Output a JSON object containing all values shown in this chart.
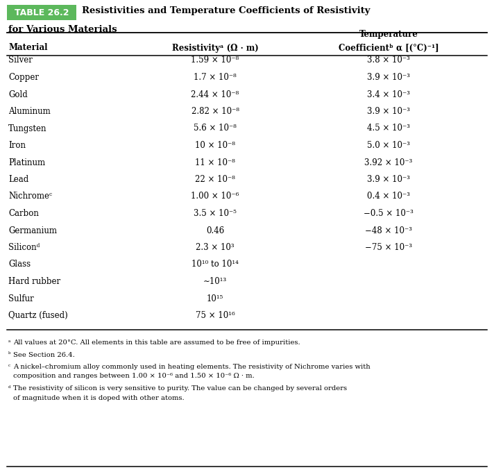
{
  "title_label": "TABLE 26.2",
  "title_bg_color": "#5cb85c",
  "title_line1": "Resistivities and Temperature Coefficients of Resistivity",
  "title_line2": "for Various Materials",
  "col_headers": [
    "Material",
    "Resistivityᵃ (Ω · m)",
    "Temperature\nCoefficientᵇ α [(°C)⁻¹]"
  ],
  "rows": [
    [
      "Silver",
      "1.59 × 10⁻⁸",
      "3.8 × 10⁻³"
    ],
    [
      "Copper",
      "1.7 × 10⁻⁸",
      "3.9 × 10⁻³"
    ],
    [
      "Gold",
      "2.44 × 10⁻⁸",
      "3.4 × 10⁻³"
    ],
    [
      "Aluminum",
      "2.82 × 10⁻⁸",
      "3.9 × 10⁻³"
    ],
    [
      "Tungsten",
      "5.6 × 10⁻⁸",
      "4.5 × 10⁻³"
    ],
    [
      "Iron",
      "10 × 10⁻⁸",
      "5.0 × 10⁻³"
    ],
    [
      "Platinum",
      "11 × 10⁻⁸",
      "3.92 × 10⁻³"
    ],
    [
      "Lead",
      "22 × 10⁻⁸",
      "3.9 × 10⁻³"
    ],
    [
      "Nichromeᶜ",
      "1.00 × 10⁻⁶",
      "0.4 × 10⁻³"
    ],
    [
      "Carbon",
      "3.5 × 10⁻⁵",
      "−0.5 × 10⁻³"
    ],
    [
      "Germanium",
      "0.46",
      "−48 × 10⁻³"
    ],
    [
      "Siliconᵈ",
      "2.3 × 10³",
      "−75 × 10⁻³"
    ],
    [
      "Glass",
      "10¹⁰ to 10¹⁴",
      ""
    ],
    [
      "Hard rubber",
      "∼10¹³",
      ""
    ],
    [
      "Sulfur",
      "10¹⁵",
      ""
    ],
    [
      "Quartz (fused)",
      "75 × 10¹⁶",
      ""
    ]
  ],
  "footnotes": [
    [
      "ᵃ",
      " All values at 20°C. All elements in this table are assumed to be free of impurities."
    ],
    [
      "ᵇ",
      " See Section 26.4."
    ],
    [
      "ᶜ",
      " A nickel–chromium alloy commonly used in heating elements. The resistivity of Nichrome varies with composition and ranges between 1.00 × 10⁻⁶ and 1.50 × 10⁻⁶ Ω · m."
    ],
    [
      "ᵈ",
      " The resistivity of silicon is very sensitive to purity. The value can be changed by several orders of magnitude when it is doped with other atoms."
    ]
  ],
  "bg_color": "#ffffff",
  "text_color": "#000000",
  "fig_width": 7.12,
  "fig_height": 6.77,
  "dpi": 100
}
